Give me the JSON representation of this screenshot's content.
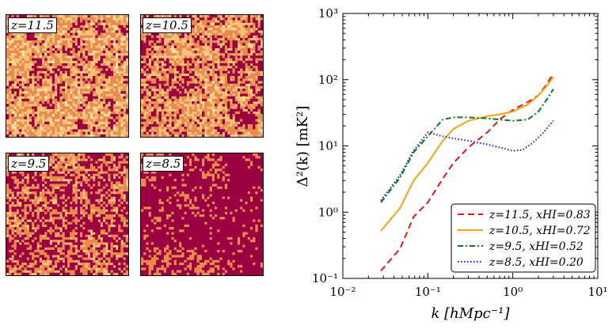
{
  "panels": [
    {
      "label": "z=11.5",
      "neutral_fraction": 0.83
    },
    {
      "label": "z=10.5",
      "neutral_fraction": 0.72
    },
    {
      "label": "z=9.5",
      "neutral_fraction": 0.52
    },
    {
      "label": "z=8.5",
      "neutral_fraction": 0.2
    }
  ],
  "colors": {
    "neutral": "#f5c27a",
    "neutral_dark": "#e98a4f",
    "ionized": "#9b0040"
  },
  "chart_data": {
    "type": "line",
    "xscale": "log",
    "yscale": "log",
    "xlim": [
      0.01,
      10
    ],
    "ylim": [
      0.1,
      1000
    ],
    "xlabel": "k [hMpc⁻¹]",
    "ylabel": "Δ²(k) [mK²]",
    "x_ticks": [
      "10⁻²",
      "10⁻¹",
      "10⁰",
      "10¹"
    ],
    "y_ticks": [
      "10⁻¹",
      "10⁰",
      "10¹",
      "10²",
      "10³"
    ],
    "legend_position": "bottom-right",
    "series": [
      {
        "name": "z=11.5, xHI=0.83",
        "color": "#e8141a",
        "dash": "8,5",
        "width": 2,
        "x": [
          0.028,
          0.047,
          0.068,
          0.1,
          0.15,
          0.2,
          0.3,
          0.5,
          0.7,
          1.0,
          1.5,
          2.0,
          2.5,
          3.0
        ],
        "y": [
          0.13,
          0.28,
          0.85,
          1.4,
          3.2,
          5.5,
          9.5,
          16,
          25,
          35,
          46,
          58,
          85,
          125
        ]
      },
      {
        "name": "z=10.5, xHI=0.72",
        "color": "#f5a313",
        "dash": "",
        "width": 2,
        "x": [
          0.028,
          0.047,
          0.068,
          0.1,
          0.15,
          0.2,
          0.3,
          0.5,
          0.7,
          1.0,
          1.5,
          2.0,
          2.5,
          3.0
        ],
        "y": [
          0.52,
          1.15,
          3.0,
          5.5,
          12,
          18,
          24,
          28,
          30,
          33,
          42,
          58,
          80,
          110
        ]
      },
      {
        "name": "z=9.5, xHI=0.52",
        "color": "#0b7a1b",
        "dash": "7,3,2,3",
        "width": 2,
        "x": [
          0.028,
          0.047,
          0.068,
          0.1,
          0.15,
          0.2,
          0.3,
          0.5,
          0.7,
          1.0,
          1.5,
          2.0,
          2.5,
          3.0
        ],
        "y": [
          1.4,
          3.3,
          8.0,
          14,
          25,
          27,
          27,
          26,
          25,
          24,
          25,
          33,
          50,
          72
        ]
      },
      {
        "name": "z=8.5, xHI=0.20",
        "color": "#1520d6",
        "dash": "1.5,2.5",
        "width": 2,
        "x": [
          0.028,
          0.047,
          0.068,
          0.1,
          0.15,
          0.2,
          0.3,
          0.5,
          0.7,
          1.0,
          1.3,
          1.7,
          2.2,
          3.0
        ],
        "y": [
          1.5,
          3.6,
          8.5,
          16,
          14,
          13,
          12,
          10.5,
          9.5,
          8.4,
          8.7,
          11,
          15,
          24
        ]
      }
    ]
  }
}
